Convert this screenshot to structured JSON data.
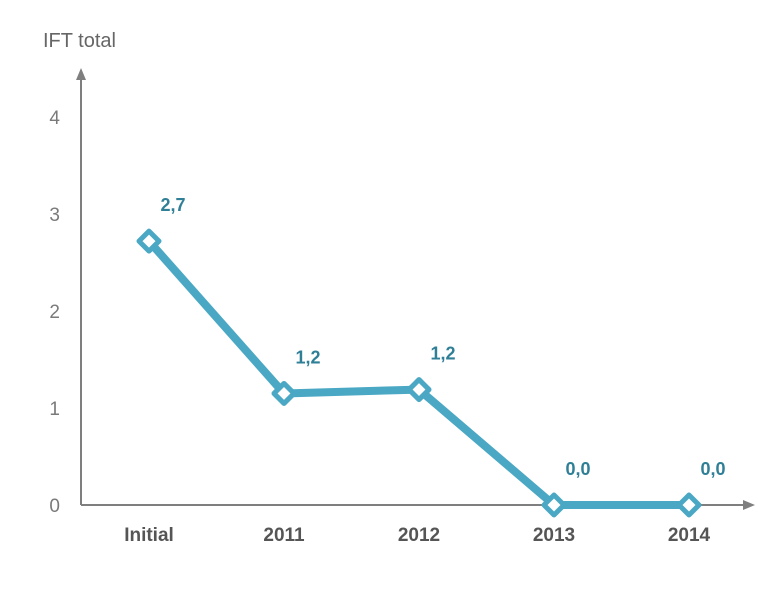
{
  "chart_data": {
    "type": "line",
    "ylabel": "IFT total",
    "categories": [
      "Initial",
      "2011",
      "2012",
      "2013",
      "2014"
    ],
    "y": [
      2.72,
      1.15,
      1.19,
      0.0,
      0.0
    ],
    "data_labels": [
      "2,7",
      "1,2",
      "1,2",
      "0,0",
      "0,0"
    ],
    "yticks": [
      "0",
      "1",
      "2",
      "3",
      "4"
    ],
    "ylim": [
      0,
      4
    ],
    "grid": false,
    "legend": "none"
  },
  "colors": {
    "line": "#4aa8c4",
    "label": "#2f7f97",
    "axis": "#7f7f7f",
    "tick_text": "#7a7a7a",
    "category_text": "#555555"
  }
}
